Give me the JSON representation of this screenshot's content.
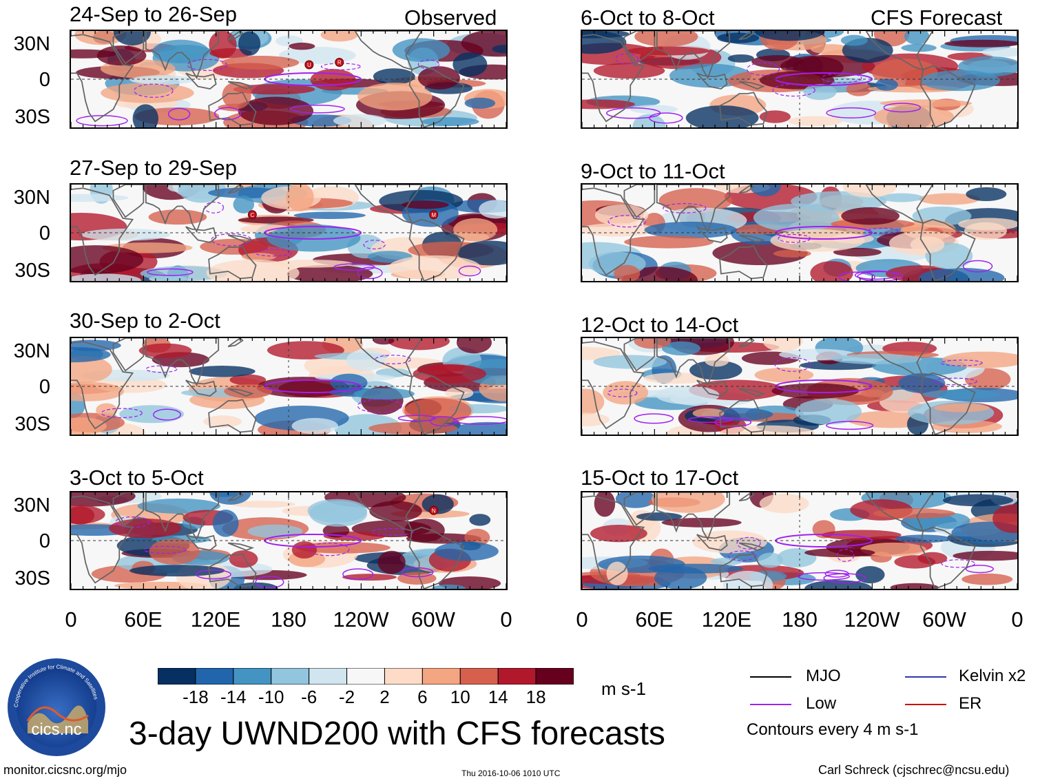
{
  "chart_data": {
    "type": "heatmap",
    "title": "3-day UWND200 with CFS forecasts",
    "units": "m s-1",
    "column_headers": {
      "observed": "Observed",
      "forecast": "CFS Forecast"
    },
    "y_ticks": [
      "30N",
      "0",
      "30S"
    ],
    "x_ticks": [
      "0",
      "60E",
      "120E",
      "180",
      "120W",
      "60W",
      "0"
    ],
    "panels": [
      {
        "period": "24-Sep to 26-Sep",
        "kind": "observed",
        "markers": [
          {
            "label": "U",
            "lon": 197,
            "lat": 12
          },
          {
            "label": "R",
            "lon": 222,
            "lat": 14
          }
        ]
      },
      {
        "period": "27-Sep to 29-Sep",
        "kind": "observed",
        "markers": [
          {
            "label": "C",
            "lon": 150,
            "lat": 15
          },
          {
            "label": "M",
            "lon": 300,
            "lat": 15
          }
        ]
      },
      {
        "period": "30-Sep to 2-Oct",
        "kind": "observed",
        "markers": []
      },
      {
        "period": "3-Oct to 5-Oct",
        "kind": "observed",
        "markers": [
          {
            "label": "N",
            "lon": 300,
            "lat": 25
          }
        ]
      },
      {
        "period": "6-Oct to 8-Oct",
        "kind": "forecast",
        "markers": []
      },
      {
        "period": "9-Oct to 11-Oct",
        "kind": "forecast",
        "markers": []
      },
      {
        "period": "12-Oct to 14-Oct",
        "kind": "forecast",
        "markers": []
      },
      {
        "period": "15-Oct to 17-Oct",
        "kind": "forecast",
        "markers": []
      }
    ],
    "colorbar": {
      "labels": [
        "-18",
        "-14",
        "-10",
        "-6",
        "-2",
        "2",
        "6",
        "10",
        "14",
        "18"
      ],
      "colors": [
        "#053061",
        "#2166ac",
        "#4393c3",
        "#92c5de",
        "#d1e5f0",
        "#f7f7f7",
        "#fddbc7",
        "#f4a582",
        "#d6604d",
        "#b2182b",
        "#67001f"
      ]
    },
    "legend": [
      {
        "label": "MJO",
        "color": "#000000"
      },
      {
        "label": "Kelvin x2",
        "color": "#3333aa"
      },
      {
        "label": "Low",
        "color": "#a020f0"
      },
      {
        "label": "ER",
        "color": "#cc0000"
      }
    ],
    "contour_note": "Contours every 4 m s-1"
  },
  "footer": {
    "left": "monitor.cicsnc.org/mjo",
    "center": "Thu 2016-10-06 1010 UTC",
    "right": "Carl Schreck (cjschrec@ncsu.edu)"
  },
  "logo": {
    "text": "cics.nc",
    "ring": "Cooperative Institute for Climate and Satellites"
  }
}
